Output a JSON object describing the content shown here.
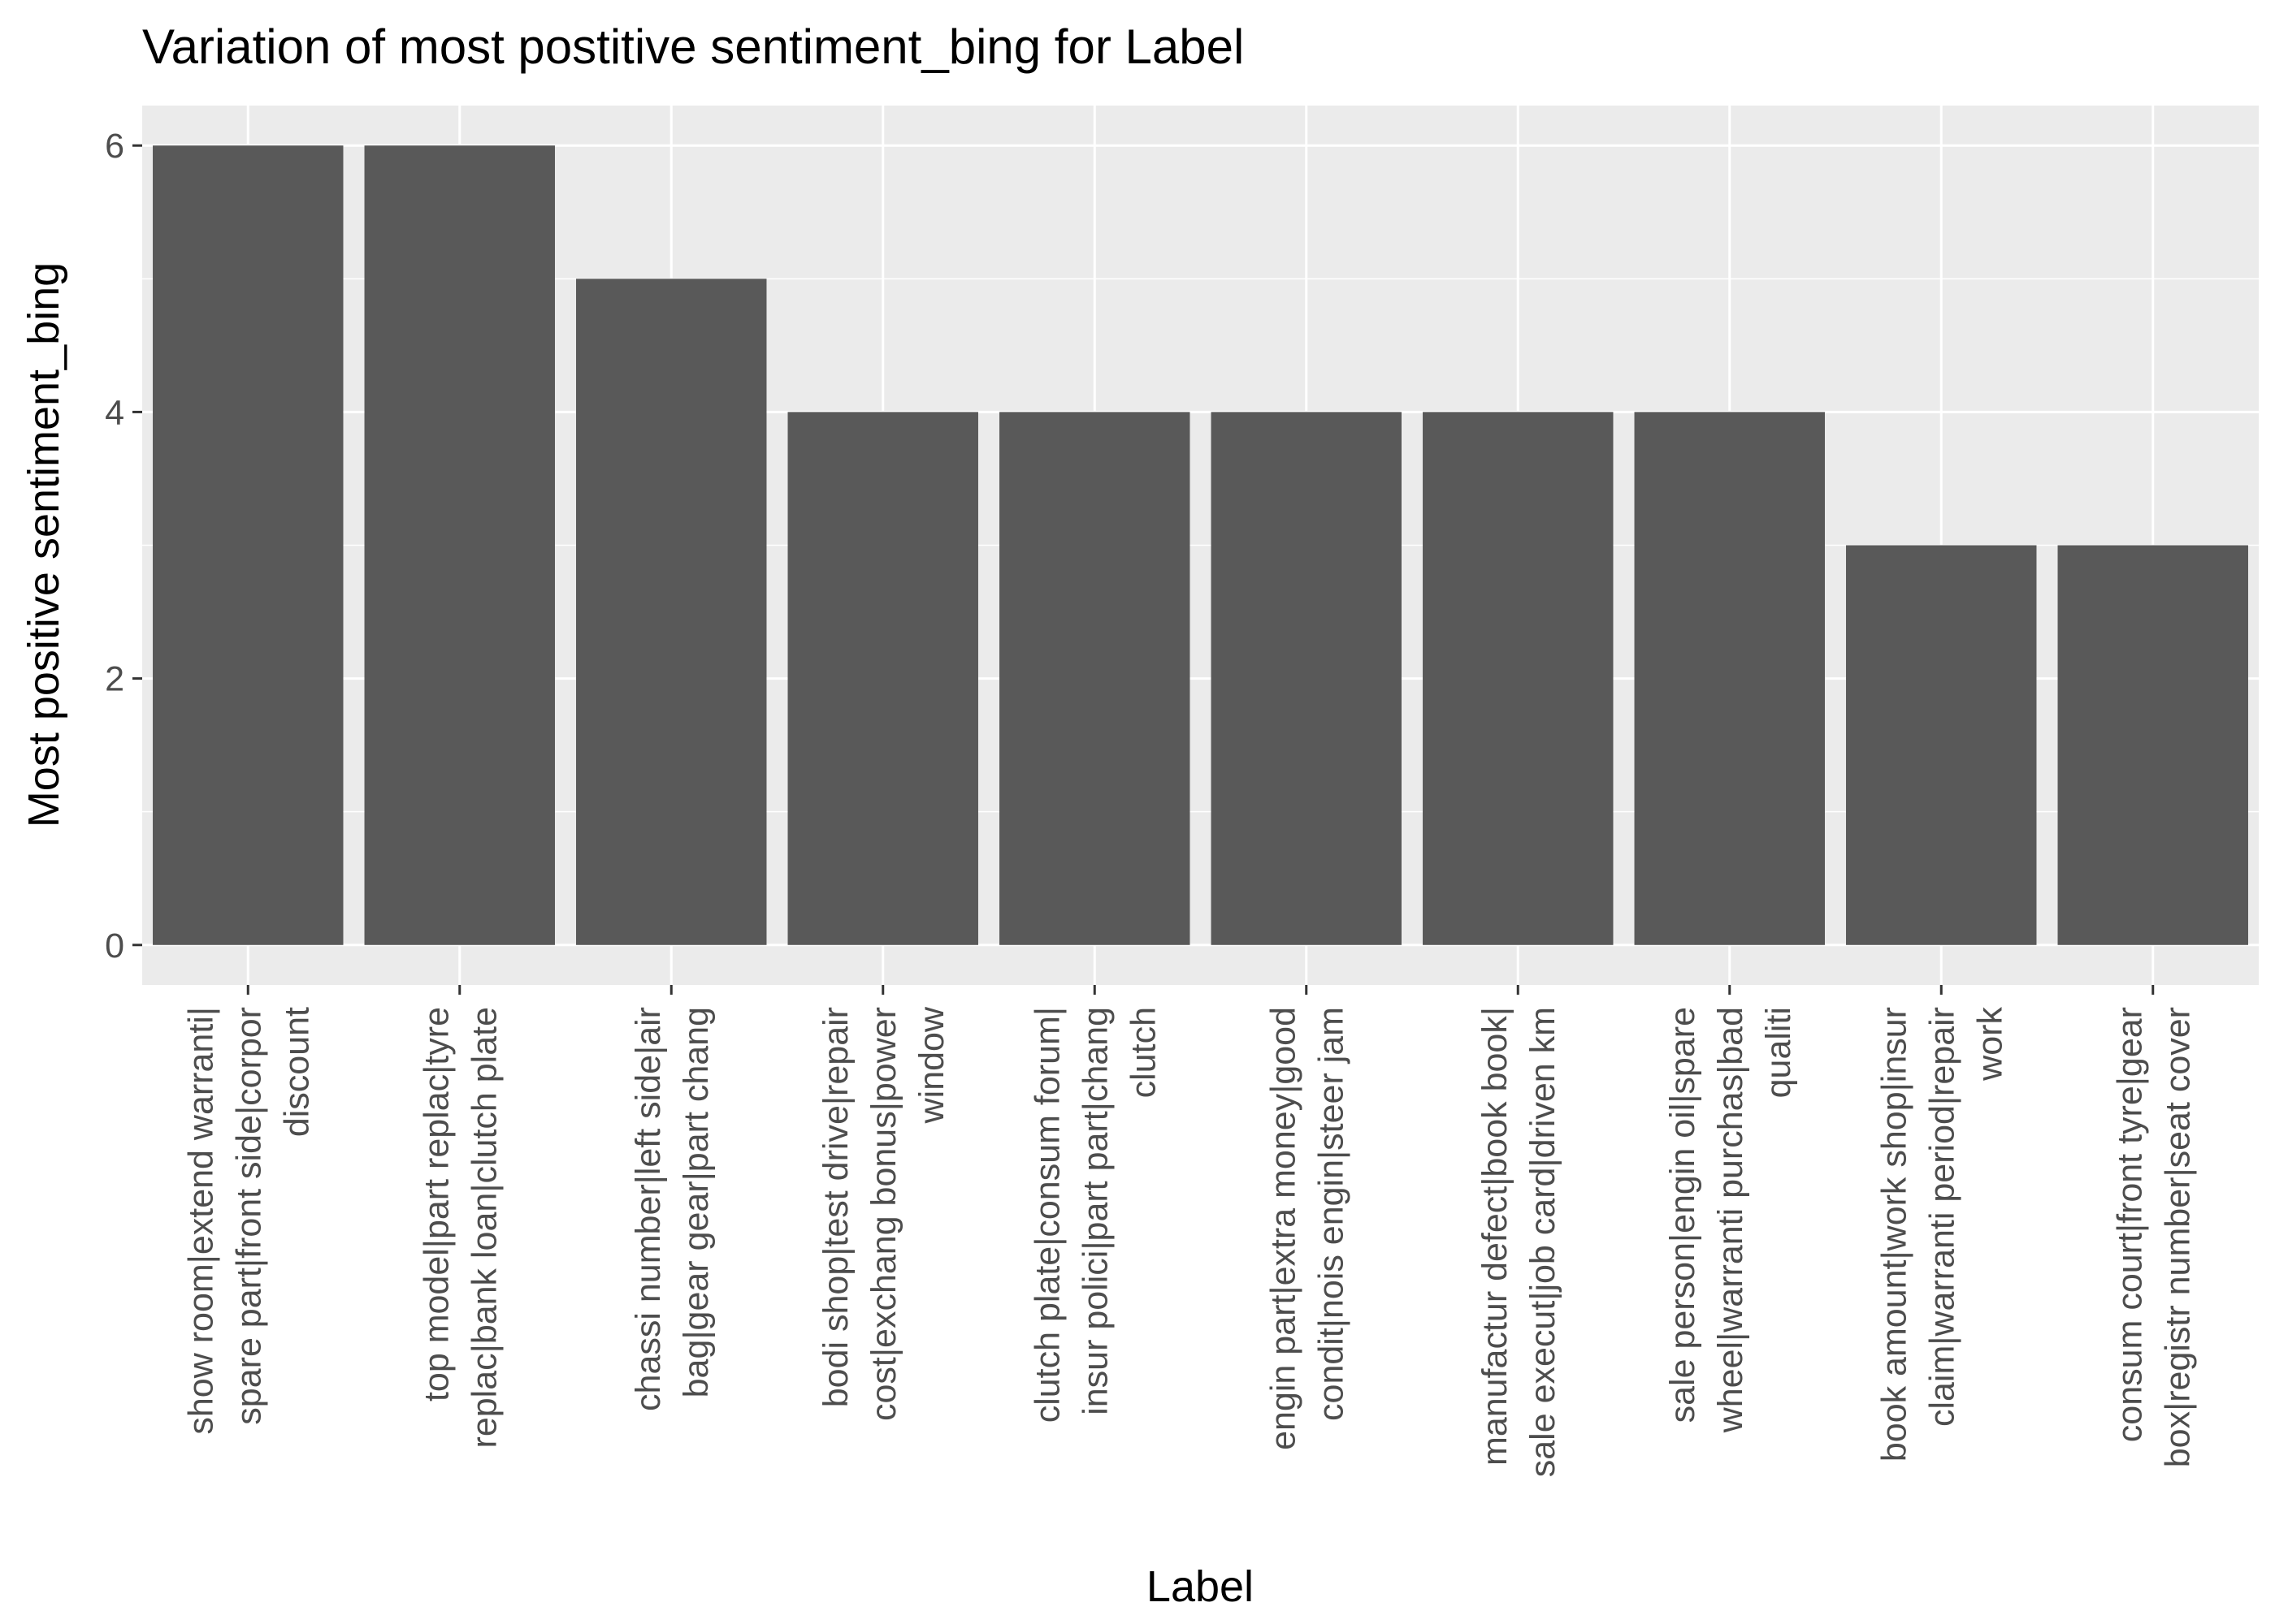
{
  "chart_data": {
    "type": "bar",
    "title": "Variation of most postitive sentiment_bing for Label",
    "xlabel": "Label",
    "ylabel": "Most positive sentiment_bing",
    "ylim": [
      -0.3,
      6.3
    ],
    "yticks": [
      0,
      2,
      4,
      6
    ],
    "grid": true,
    "legend": "none",
    "colors": {
      "bar": "#595959",
      "panel": "#EBEBEB",
      "grid": "#FFFFFF",
      "text": "#000000",
      "tick_text": "#4D4D4D",
      "tick": "#333333"
    },
    "categories": [
      [
        "show room|extend warranti|",
        "spare part|front side|corpor",
        "discount"
      ],
      [
        "top model|part replac|tyre",
        "replac|bank loan|clutch plate"
      ],
      [
        "chassi number|left side|air",
        "bag|gear gear|part chang"
      ],
      [
        "bodi shop|test drive|repair",
        "cost|exchang bonus|power",
        "window"
      ],
      [
        "clutch plate|consum forum|",
        "insur polici|part part|chang",
        "clutch"
      ],
      [
        "engin part|extra money|good",
        "condit|nois engin|steer jam"
      ],
      [
        "manufactur defect|book book|",
        "sale execut|job card|driven km"
      ],
      [
        "sale person|engin oil|spare",
        "wheel|warranti purchas|bad",
        "qualiti"
      ],
      [
        "book amount|work shop|insur",
        "claim|warranti period|repair",
        "work"
      ],
      [
        "consum court|front tyre|gear",
        "box|registr number|seat cover"
      ]
    ],
    "values": [
      6,
      6,
      5,
      4,
      4,
      4,
      4,
      4,
      3,
      3
    ]
  }
}
